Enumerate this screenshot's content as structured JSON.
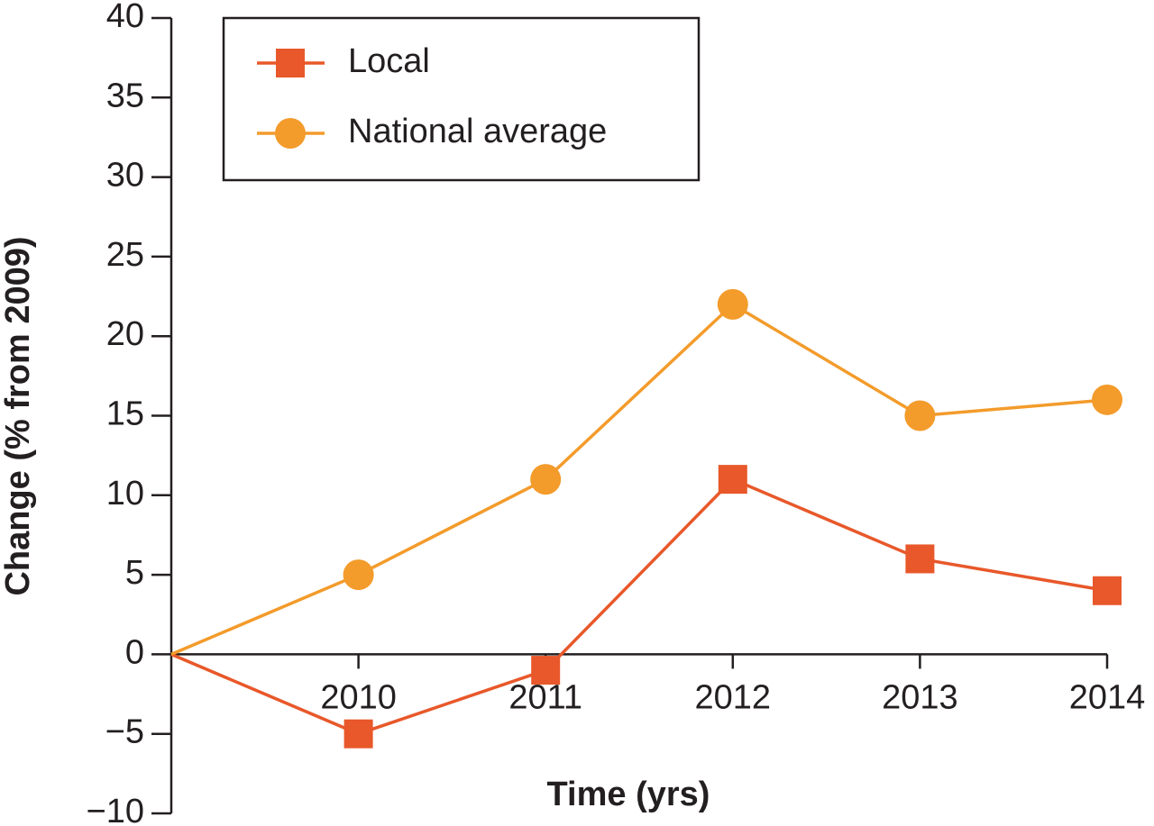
{
  "chart_data": {
    "type": "line",
    "x_label": "Time (yrs)",
    "y_label": "Change (% from 2009)",
    "x": [
      2009,
      2010,
      2011,
      2012,
      2013,
      2014
    ],
    "xlim": [
      2009,
      2014
    ],
    "xticks": [
      2010,
      2011,
      2012,
      2013,
      2014
    ],
    "ylim": [
      -10,
      40
    ],
    "yticks": [
      {
        "value": -10,
        "label": "−10"
      },
      {
        "value": -5,
        "label": "−5"
      },
      0,
      5,
      10,
      15,
      20,
      25,
      30,
      35,
      40
    ],
    "legend": "upper left",
    "series": [
      {
        "name": "Local",
        "color": "#e8582a",
        "marker": "square",
        "values": [
          0,
          -5,
          -1,
          11,
          6,
          4
        ]
      },
      {
        "name": "National average",
        "color": "#f39b2b",
        "marker": "circle",
        "values": [
          0,
          5,
          11,
          22,
          15,
          16
        ]
      }
    ]
  }
}
